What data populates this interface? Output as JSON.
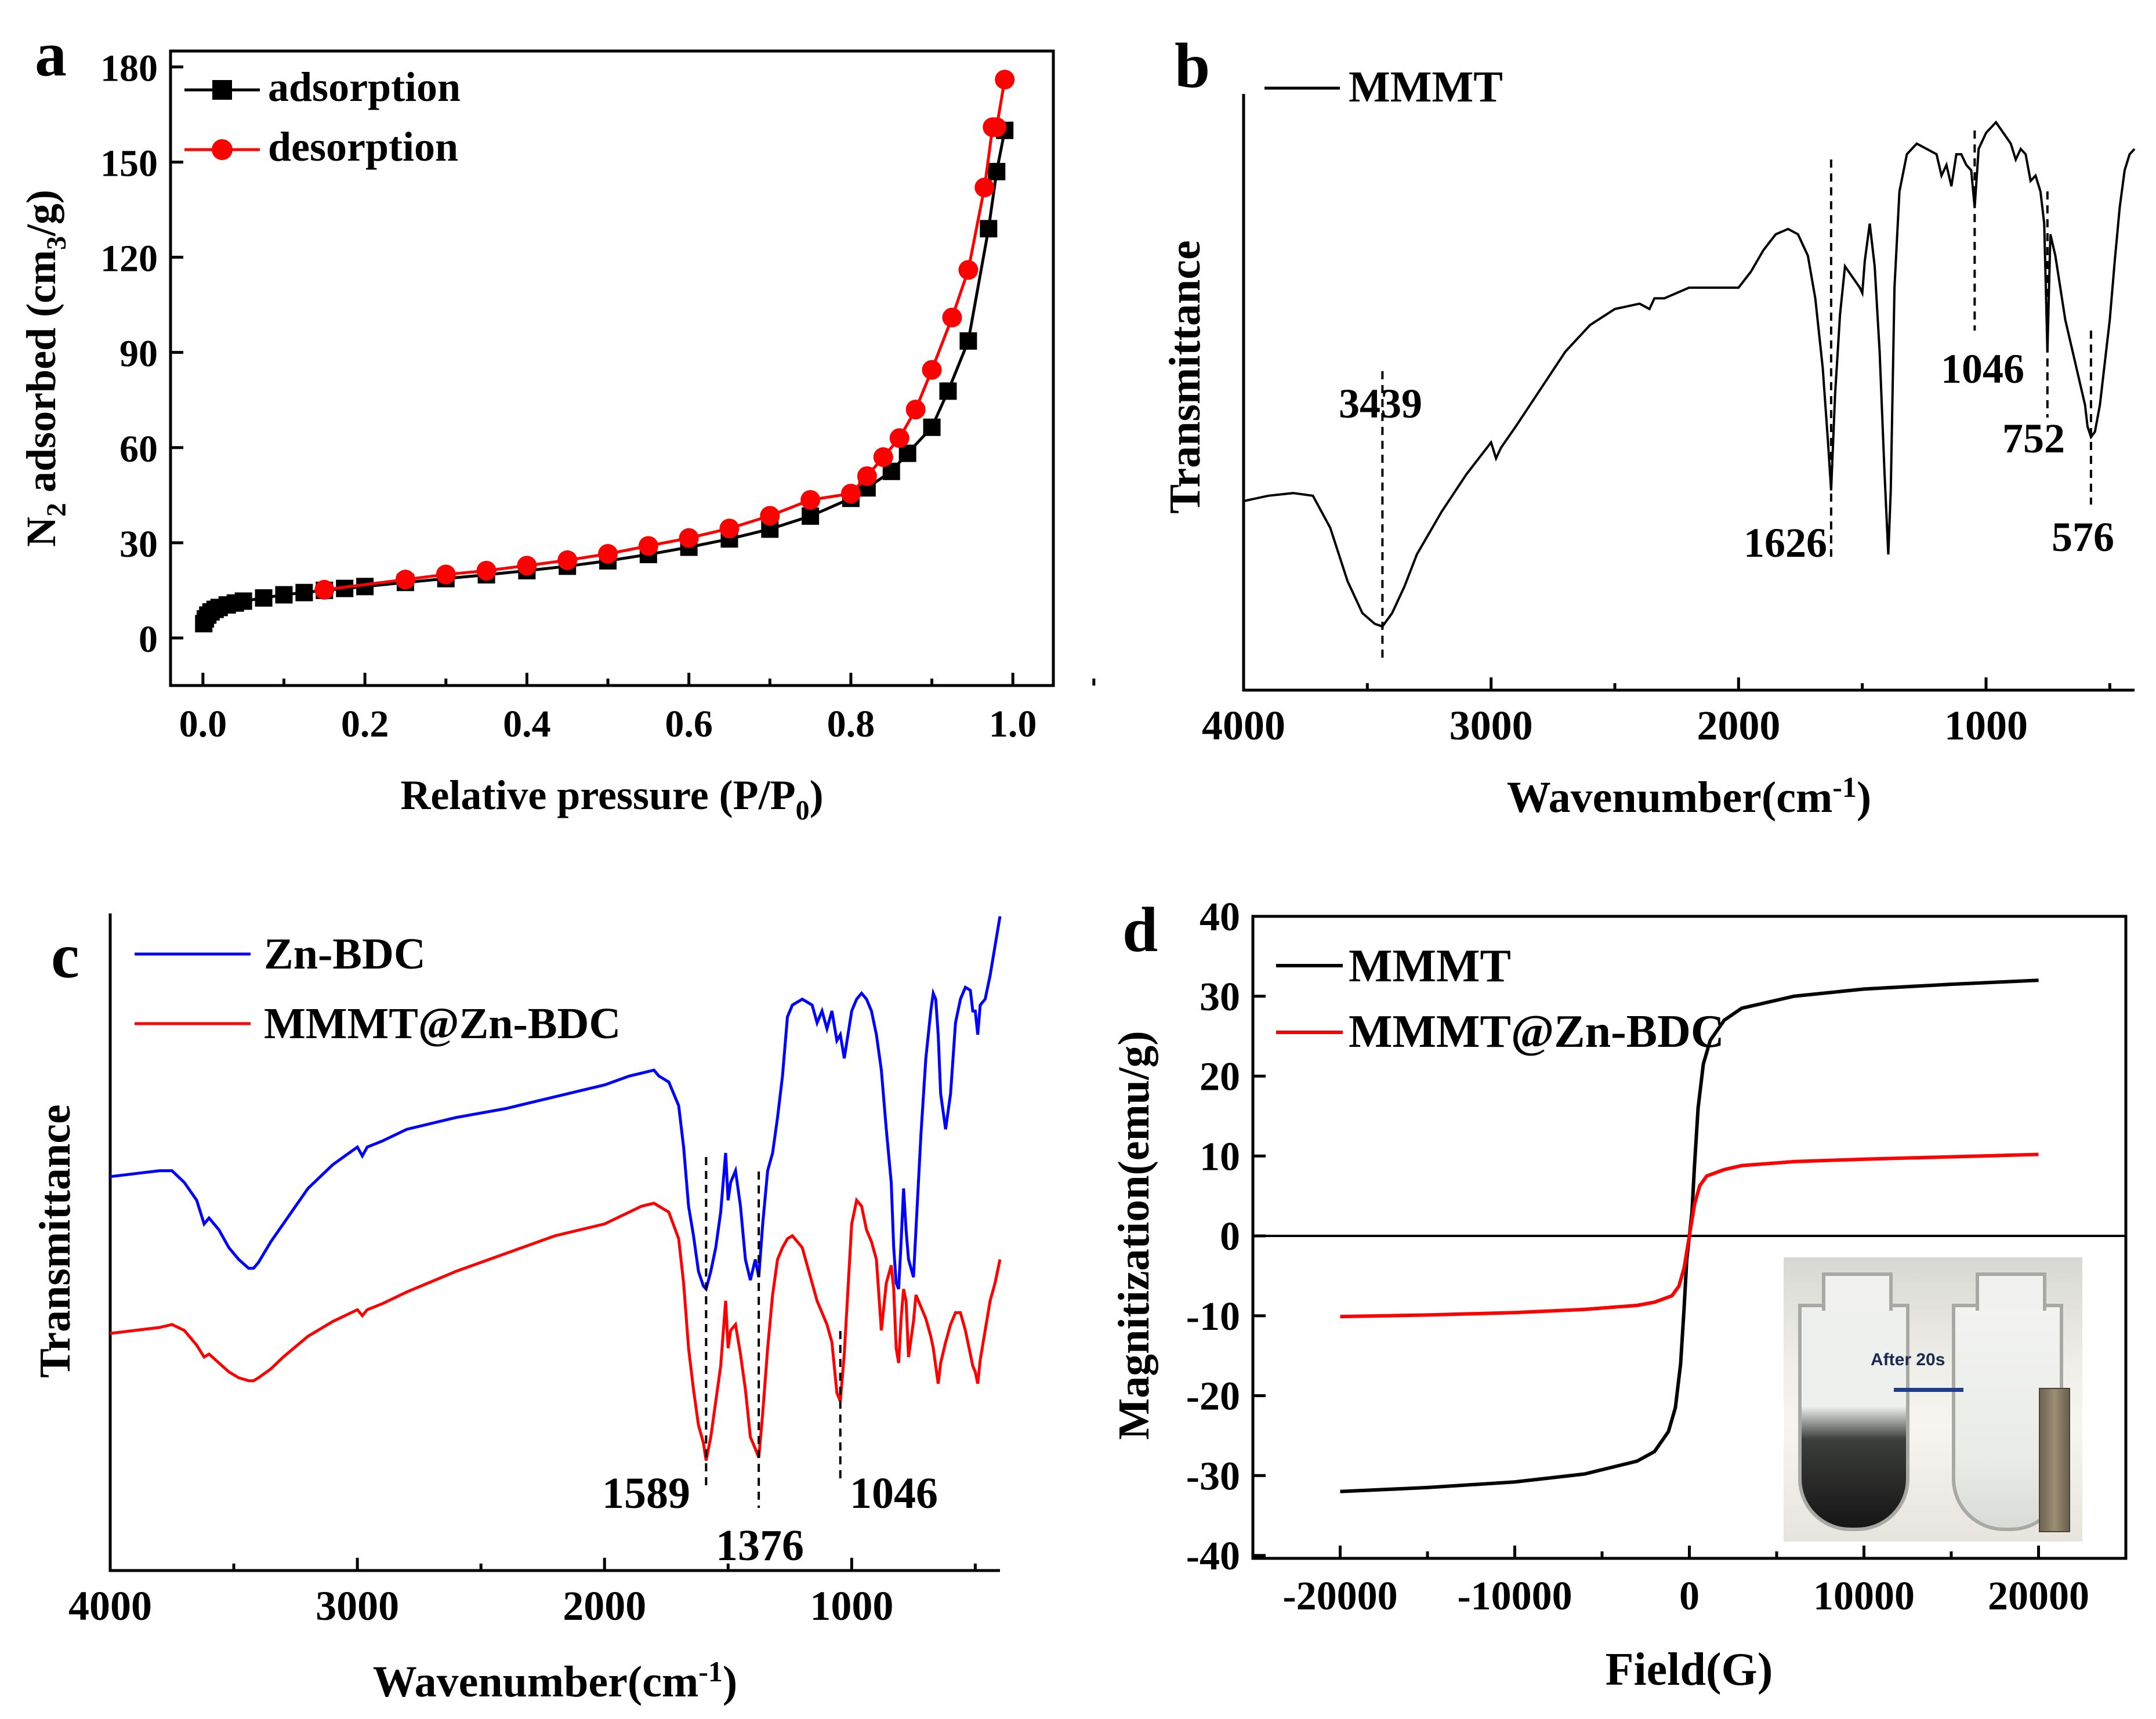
{
  "chart_data": [
    {
      "panel": "a",
      "type": "line",
      "xlabel": "Relative pressure (P/P",
      "xlabel_sub": "0",
      "xlabel_end": ")",
      "ylabel_pre": "N",
      "ylabel_sub1": "2",
      "ylabel_mid": " adsorbed (cm",
      "ylabel_sub2": "3",
      "ylabel_end": "/g)",
      "xlim": [
        -0.04,
        1.05
      ],
      "ylim": [
        -15,
        185
      ],
      "xticks": [
        "0.0",
        "0.2",
        "0.4",
        "0.6",
        "0.8",
        "1.0"
      ],
      "xtick_values": [
        0.0,
        0.2,
        0.4,
        0.6,
        0.8,
        1.0
      ],
      "yticks": [
        "0",
        "30",
        "60",
        "90",
        "120",
        "150",
        "180"
      ],
      "ytick_values": [
        0,
        30,
        60,
        90,
        120,
        150,
        180
      ],
      "legend": [
        "adsorption",
        "desorption"
      ],
      "series": [
        {
          "name": "adsorption",
          "color": "#000000",
          "marker": "square",
          "x": [
            0.001,
            0.003,
            0.006,
            0.01,
            0.015,
            0.02,
            0.03,
            0.04,
            0.05,
            0.075,
            0.1,
            0.125,
            0.15,
            0.175,
            0.2,
            0.25,
            0.3,
            0.35,
            0.4,
            0.45,
            0.5,
            0.55,
            0.6,
            0.65,
            0.7,
            0.75,
            0.8,
            0.82,
            0.85,
            0.87,
            0.9,
            0.92,
            0.945,
            0.97,
            0.98,
            0.99
          ],
          "y": [
            4.5,
            6,
            7.2,
            8.2,
            9,
            9.6,
            10.4,
            11,
            11.6,
            12.6,
            13.6,
            14.3,
            15,
            15.6,
            16.2,
            17.5,
            18.7,
            19.9,
            21.2,
            22.6,
            24.3,
            26.3,
            28.6,
            31.2,
            34.3,
            38.4,
            44,
            47.3,
            52.5,
            58.2,
            66.4,
            77.8,
            93.6,
            129,
            147,
            160
          ]
        },
        {
          "name": "desorption",
          "color": "#ff0000",
          "marker": "circle",
          "x": [
            0.99,
            0.98,
            0.975,
            0.965,
            0.945,
            0.925,
            0.9,
            0.88,
            0.86,
            0.84,
            0.82,
            0.8,
            0.75,
            0.7,
            0.65,
            0.6,
            0.55,
            0.5,
            0.45,
            0.4,
            0.35,
            0.3,
            0.25,
            0.15
          ],
          "y": [
            176,
            161,
            161,
            142,
            116,
            101,
            84.5,
            72,
            63,
            57,
            51,
            45.5,
            43.5,
            38.5,
            34.5,
            31.5,
            29,
            26.5,
            24.5,
            22.8,
            21.2,
            20,
            18.4,
            15.2
          ]
        }
      ]
    },
    {
      "panel": "b",
      "type": "line",
      "xlabel": "Wavenumber(cm",
      "xlabel_sup": "-1",
      "xlabel_end": ")",
      "ylabel": "Transmittance",
      "xlim": [
        4000,
        400
      ],
      "ylim": [
        0,
        100
      ],
      "xticks": [
        "4000",
        "3000",
        "2000",
        "1000"
      ],
      "xtick_values": [
        4000,
        3000,
        2000,
        1000
      ],
      "legend": [
        "MMMT"
      ],
      "annotations": [
        "3439",
        "1626",
        "1046",
        "752",
        "576"
      ],
      "annotation_x": [
        3439,
        1626,
        1046,
        752,
        576
      ],
      "series": [
        {
          "name": "MMMT",
          "color": "#000000",
          "x": [
            4000,
            3900,
            3800,
            3720,
            3650,
            3580,
            3520,
            3470,
            3439,
            3400,
            3350,
            3300,
            3200,
            3100,
            3000,
            2980,
            2960,
            2900,
            2800,
            2700,
            2600,
            2500,
            2400,
            2360,
            2340,
            2300,
            2200,
            2100,
            2000,
            1950,
            1900,
            1850,
            1800,
            1760,
            1720,
            1690,
            1660,
            1640,
            1626,
            1610,
            1590,
            1570,
            1540,
            1510,
            1500,
            1490,
            1470,
            1450,
            1430,
            1410,
            1395,
            1385,
            1370,
            1350,
            1320,
            1280,
            1240,
            1200,
            1180,
            1160,
            1140,
            1120,
            1100,
            1080,
            1060,
            1046,
            1030,
            1000,
            960,
            930,
            900,
            880,
            860,
            840,
            820,
            800,
            780,
            765,
            752,
            740,
            720,
            700,
            680,
            660,
            640,
            620,
            600,
            590,
            576,
            560,
            540,
            520,
            500,
            480,
            460,
            440,
            420,
            400
          ],
          "y": [
            30,
            31,
            31.5,
            31,
            25,
            15,
            9,
            7,
            6.5,
            9,
            14,
            20,
            28,
            35,
            41,
            38,
            40,
            44,
            51,
            58,
            63,
            66,
            67,
            66,
            68,
            68,
            70,
            70,
            70,
            73,
            77,
            80,
            81,
            80,
            76,
            68,
            55,
            42,
            32,
            50,
            65,
            74,
            72,
            70,
            69,
            75,
            82,
            74,
            58,
            35,
            20,
            32,
            70,
            88,
            95,
            97,
            96,
            95,
            91,
            93,
            89,
            95,
            95,
            93,
            92,
            85,
            96,
            99,
            101,
            99,
            97,
            94,
            96,
            95,
            90,
            91,
            88,
            82,
            58,
            80,
            76,
            70,
            64,
            60,
            56,
            52,
            48,
            44,
            42,
            43,
            48,
            56,
            64,
            75,
            85,
            92,
            95,
            96
          ]
        }
      ]
    },
    {
      "panel": "c",
      "type": "line",
      "xlabel": "Wavenumber(cm",
      "xlabel_sup": "-1",
      "xlabel_end": ")",
      "ylabel": "Transmittance",
      "xlim": [
        4000,
        400
      ],
      "ylim": [
        0,
        100
      ],
      "xticks": [
        "4000",
        "3000",
        "2000",
        "1000"
      ],
      "xtick_values": [
        4000,
        3000,
        2000,
        1000
      ],
      "legend": [
        "Zn-BDC",
        "MMMT@Zn-BDC"
      ],
      "annotations": [
        "1589",
        "1376",
        "1046"
      ],
      "annotation_x": [
        1589,
        1376,
        1046
      ],
      "series": [
        {
          "name": "Zn-BDC",
          "color": "#0000ff",
          "x": [
            4000,
            3900,
            3800,
            3750,
            3700,
            3650,
            3620,
            3600,
            3560,
            3520,
            3480,
            3440,
            3420,
            3400,
            3350,
            3300,
            3200,
            3100,
            3000,
            2980,
            2960,
            2900,
            2800,
            2600,
            2400,
            2200,
            2000,
            1900,
            1850,
            1800,
            1780,
            1740,
            1700,
            1680,
            1660,
            1640,
            1620,
            1600,
            1589,
            1570,
            1550,
            1530,
            1510,
            1500,
            1490,
            1470,
            1450,
            1430,
            1410,
            1390,
            1376,
            1360,
            1340,
            1320,
            1300,
            1280,
            1260,
            1240,
            1200,
            1160,
            1140,
            1120,
            1100,
            1080,
            1060,
            1046,
            1030,
            1000,
            980,
            960,
            940,
            920,
            900,
            880,
            860,
            840,
            830,
            820,
            810,
            800,
            790,
            780,
            770,
            750,
            740,
            720,
            700,
            680,
            670,
            660,
            650,
            640,
            620,
            600,
            580,
            560,
            540,
            520,
            510,
            500,
            490,
            480,
            460,
            440,
            420,
            400
          ],
          "y": [
            56,
            56.5,
            57,
            57,
            55,
            52,
            48,
            49,
            47,
            44,
            42,
            40.5,
            40.5,
            41.5,
            45,
            48,
            54,
            58,
            61,
            59.5,
            61,
            62,
            64,
            66,
            67.5,
            69.5,
            71.5,
            73,
            73.5,
            74,
            73,
            72,
            68,
            61,
            51,
            46,
            40,
            37.5,
            37,
            40,
            44,
            50,
            60,
            52,
            55,
            57,
            51,
            42,
            38.5,
            42,
            39,
            48,
            57,
            60,
            66,
            73,
            83,
            85,
            86,
            85,
            82,
            84,
            81,
            84,
            79,
            80,
            76,
            84,
            86,
            87,
            86,
            84,
            80,
            74,
            64,
            55,
            44,
            38,
            37,
            45,
            54,
            47,
            42,
            39,
            47,
            63,
            76,
            84,
            87,
            86,
            80,
            70,
            64,
            70,
            82,
            86,
            88,
            87.5,
            84,
            84,
            80,
            85,
            86,
            90,
            95,
            100
          ]
        },
        {
          "name": "MMMT@Zn-BDC",
          "color": "#ff0000",
          "x": [
            4000,
            3900,
            3800,
            3750,
            3700,
            3650,
            3620,
            3600,
            3560,
            3520,
            3480,
            3440,
            3420,
            3400,
            3350,
            3300,
            3200,
            3100,
            3000,
            2980,
            2960,
            2900,
            2800,
            2600,
            2400,
            2200,
            2000,
            1900,
            1850,
            1800,
            1780,
            1740,
            1700,
            1680,
            1660,
            1640,
            1620,
            1600,
            1589,
            1570,
            1550,
            1530,
            1510,
            1500,
            1490,
            1470,
            1450,
            1430,
            1410,
            1390,
            1376,
            1360,
            1340,
            1320,
            1300,
            1280,
            1260,
            1240,
            1200,
            1160,
            1140,
            1120,
            1100,
            1080,
            1060,
            1046,
            1030,
            1000,
            980,
            960,
            940,
            920,
            900,
            880,
            860,
            840,
            830,
            820,
            810,
            800,
            790,
            780,
            770,
            750,
            740,
            720,
            700,
            680,
            670,
            660,
            650,
            640,
            620,
            600,
            580,
            560,
            540,
            520,
            510,
            500,
            490,
            480,
            460,
            440,
            420,
            400
          ],
          "y": [
            29.5,
            30,
            30.5,
            31,
            30,
            27.5,
            25.5,
            26,
            24.5,
            23,
            22,
            21.5,
            21.5,
            22,
            23.5,
            25.5,
            29,
            31.5,
            33.5,
            32.5,
            33.5,
            34.5,
            36.5,
            40,
            43,
            46,
            48,
            50,
            51,
            51.5,
            51,
            50,
            45.5,
            38,
            27,
            20,
            14,
            11,
            8,
            12,
            18,
            24,
            35,
            27,
            30,
            31,
            26,
            20,
            12,
            10,
            8.5,
            16,
            27,
            36,
            42,
            44,
            45.5,
            46,
            44,
            38,
            35,
            33,
            31,
            28,
            19.5,
            18,
            26,
            48,
            52,
            51,
            47,
            45,
            42,
            30,
            38,
            41,
            37,
            27,
            24.5,
            32,
            37,
            35,
            25.5,
            31.5,
            36,
            34,
            32,
            29,
            27,
            24,
            21,
            24.5,
            28,
            31,
            33,
            33,
            30,
            26,
            24,
            23,
            21,
            25,
            30,
            35,
            38,
            42
          ]
        }
      ]
    },
    {
      "panel": "d",
      "type": "line",
      "xlabel": "Field(G)",
      "ylabel": "Magnitization(emu/g)",
      "xlim": [
        -25000,
        25000
      ],
      "ylim": [
        -40,
        40
      ],
      "xticks": [
        "-20000",
        "-10000",
        "0",
        "10000",
        "20000"
      ],
      "xtick_values": [
        -20000,
        -10000,
        0,
        10000,
        20000
      ],
      "yticks": [
        "-40",
        "-30",
        "-20",
        "-10",
        "0",
        "10",
        "20",
        "30",
        "40"
      ],
      "ytick_values": [
        -40,
        -30,
        -20,
        -10,
        0,
        10,
        20,
        30,
        40
      ],
      "legend": [
        "MMMT",
        "MMMT@Zn-BDC"
      ],
      "inset_text": "After 20s",
      "series": [
        {
          "name": "MMMT",
          "color": "#000000",
          "x": [
            -20000,
            -15000,
            -10000,
            -6000,
            -3000,
            -2000,
            -1200,
            -800,
            -500,
            -300,
            -150,
            0,
            150,
            300,
            500,
            800,
            1200,
            2000,
            3000,
            6000,
            10000,
            15000,
            20000
          ],
          "y": [
            -32,
            -31.5,
            -30.8,
            -29.8,
            -28.2,
            -27,
            -24.5,
            -21.5,
            -16,
            -9,
            -3,
            0,
            3,
            9,
            16,
            21.5,
            24.5,
            27,
            28.5,
            30,
            30.9,
            31.5,
            32
          ]
        },
        {
          "name": "MMMT@Zn-BDC",
          "color": "#ff0000",
          "x": [
            -20000,
            -15000,
            -10000,
            -6000,
            -3000,
            -2000,
            -1000,
            -600,
            -300,
            -150,
            0,
            150,
            300,
            600,
            1000,
            2000,
            3000,
            6000,
            10000,
            15000,
            20000
          ],
          "y": [
            -10.1,
            -9.9,
            -9.6,
            -9.2,
            -8.7,
            -8.3,
            -7.5,
            -6.3,
            -4,
            -2,
            0,
            2,
            4,
            6.3,
            7.5,
            8.3,
            8.8,
            9.3,
            9.6,
            9.9,
            10.2
          ]
        }
      ]
    }
  ]
}
